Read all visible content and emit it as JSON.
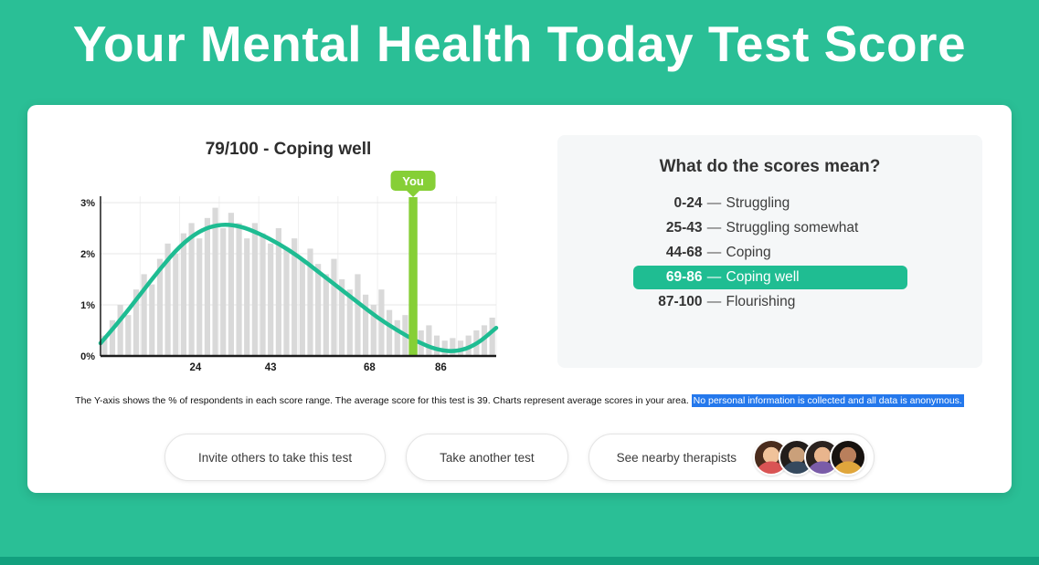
{
  "colors": {
    "background_teal": "#2abf96",
    "curve_teal": "#1ebc92",
    "highlight_pill_teal": "#1fbd92",
    "you_green": "#86cf36",
    "selection_blue": "#2478ec",
    "bar_gray": "#d9d9d9",
    "footer_teal": "#12a07e"
  },
  "header": {
    "title": "Your Mental Health Today Test Score"
  },
  "chart": {
    "title": "79/100 - Coping well",
    "caption": "The Y-axis shows the % of respondents in each score range. The average score for this test is 39. Charts represent average scores in your area. ",
    "caption_highlighted": "No personal information is collected and all data is anonymous."
  },
  "chart_data": {
    "type": "histogram_with_curve",
    "title": "79/100 - Coping well",
    "x_range": [
      0,
      100
    ],
    "y_range_percent": [
      0,
      3.3
    ],
    "x_tick_values": [
      24,
      43,
      68,
      86
    ],
    "x_tick_labels": [
      "24",
      "43",
      "68",
      "86"
    ],
    "y_tick_values": [
      0,
      1,
      2,
      3
    ],
    "y_tick_labels": [
      "0%",
      "1%",
      "2%",
      "3%"
    ],
    "average_score": 39,
    "bars": {
      "x_start": 1,
      "x_step": 2,
      "values": [
        0.4,
        0.7,
        1.0,
        0.8,
        1.3,
        1.6,
        1.4,
        1.9,
        2.2,
        2.0,
        2.4,
        2.6,
        2.3,
        2.7,
        2.9,
        2.5,
        2.8,
        2.6,
        2.3,
        2.6,
        2.4,
        2.2,
        2.5,
        2.1,
        2.3,
        1.9,
        2.1,
        1.8,
        1.6,
        1.9,
        1.5,
        1.3,
        1.6,
        1.2,
        1.0,
        1.3,
        0.9,
        0.7,
        0.8,
        0.6,
        0.5,
        0.6,
        0.4,
        0.3,
        0.35,
        0.3,
        0.4,
        0.5,
        0.6,
        0.75
      ]
    },
    "curve_points": [
      [
        0,
        0.25
      ],
      [
        5,
        0.7
      ],
      [
        10,
        1.2
      ],
      [
        15,
        1.7
      ],
      [
        20,
        2.15
      ],
      [
        25,
        2.45
      ],
      [
        30,
        2.58
      ],
      [
        35,
        2.55
      ],
      [
        40,
        2.4
      ],
      [
        45,
        2.2
      ],
      [
        50,
        1.95
      ],
      [
        55,
        1.65
      ],
      [
        60,
        1.35
      ],
      [
        65,
        1.05
      ],
      [
        70,
        0.75
      ],
      [
        75,
        0.5
      ],
      [
        80,
        0.28
      ],
      [
        85,
        0.12
      ],
      [
        90,
        0.08
      ],
      [
        95,
        0.22
      ],
      [
        100,
        0.55
      ]
    ],
    "marker": {
      "label": "You",
      "score": 79
    }
  },
  "scores": {
    "title": "What do the scores mean?",
    "separator": "—",
    "rows": [
      {
        "range": "0-24",
        "label": "Struggling",
        "highlight": false
      },
      {
        "range": "25-43",
        "label": "Struggling somewhat",
        "highlight": false
      },
      {
        "range": "44-68",
        "label": "Coping",
        "highlight": false
      },
      {
        "range": "69-86",
        "label": "Coping well",
        "highlight": true
      },
      {
        "range": "87-100",
        "label": "Flourishing",
        "highlight": false
      }
    ]
  },
  "actions": {
    "buttons": [
      {
        "label": "Invite others to take this test"
      },
      {
        "label": "Take another test"
      },
      {
        "label": "See nearby therapists"
      }
    ],
    "avatar_count": 4
  },
  "avatars": [
    {
      "hair": "#4a2c1d",
      "skin": "#f0c29a",
      "shirt": "#d95454"
    },
    {
      "hair": "#221d1b",
      "skin": "#caa07a",
      "shirt": "#35495e"
    },
    {
      "hair": "#2b2320",
      "skin": "#e9b58d",
      "shirt": "#7a5ca8"
    },
    {
      "hair": "#17120f",
      "skin": "#b97f5c",
      "shirt": "#e0a63c"
    }
  ]
}
